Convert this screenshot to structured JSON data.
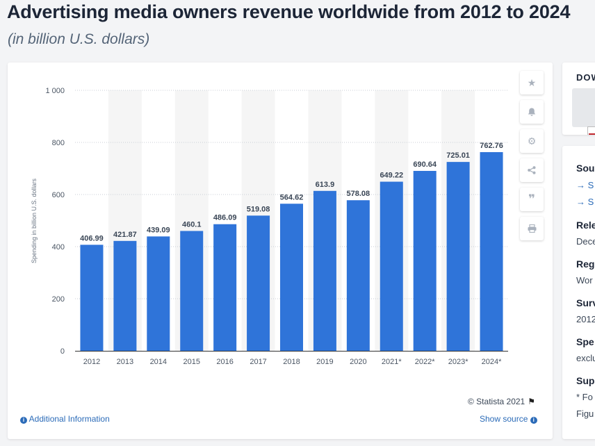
{
  "header": {
    "title": "Advertising media owners revenue worldwide from 2012 to 2024",
    "subtitle": "(in billion U.S. dollars)"
  },
  "toolbar": {
    "icons": [
      "star-icon",
      "bell-icon",
      "gear-icon",
      "share-icon",
      "quote-icon",
      "print-icon"
    ]
  },
  "footer": {
    "credit": "© Statista 2021",
    "additional_info": "Additional Information",
    "show_source": "Show source"
  },
  "sidebar": {
    "download_label": "DOW",
    "sections": [
      {
        "heading": "Sou",
        "links": [
          "→ S",
          "→ S"
        ]
      },
      {
        "heading": "Rele",
        "text": "Dece"
      },
      {
        "heading": "Reg",
        "text": "Wor"
      },
      {
        "heading": "Surv",
        "text": "2012"
      },
      {
        "heading": "Spe",
        "text": "exclu"
      },
      {
        "heading": "Sup",
        "text": "* Fo",
        "text2": "Figu"
      }
    ]
  },
  "colors": {
    "bar": "#2f74d9",
    "band": "#f5f5f5",
    "link": "#2b6bb8",
    "title": "#1c2536"
  },
  "chart_data": {
    "type": "bar",
    "title": "Advertising media owners revenue worldwide from 2012 to 2024",
    "subtitle": "(in billion U.S. dollars)",
    "ylabel": "Spending in billion U.S. dollars",
    "xlabel": "",
    "ylim": [
      0,
      1000
    ],
    "yticks": [
      0,
      200,
      400,
      600,
      800,
      1000
    ],
    "ytick_labels": [
      "0",
      "200",
      "400",
      "600",
      "800",
      "1 000"
    ],
    "categories": [
      "2012",
      "2013",
      "2014",
      "2015",
      "2016",
      "2017",
      "2018",
      "2019",
      "2020",
      "2021*",
      "2022*",
      "2023*",
      "2024*"
    ],
    "values": [
      406.99,
      421.87,
      439.09,
      460.1,
      486.09,
      519.08,
      564.62,
      613.9,
      578.08,
      649.22,
      690.64,
      725.01,
      762.76
    ],
    "value_labels": [
      "406.99",
      "421.87",
      "439.09",
      "460.1",
      "486.09",
      "519.08",
      "564.62",
      "613.9",
      "578.08",
      "649.22",
      "690.64",
      "725.01",
      "762.76"
    ],
    "grid": true,
    "legend": "none"
  }
}
